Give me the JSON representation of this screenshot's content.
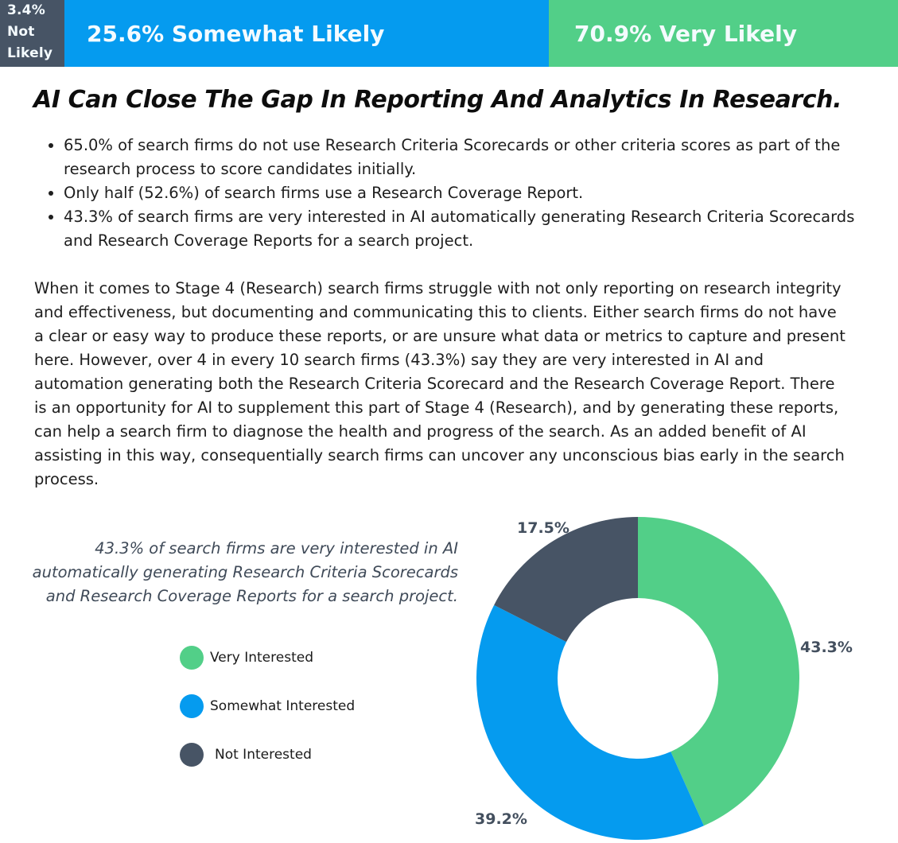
{
  "top_bar": {
    "segments": [
      {
        "label": "3.4%",
        "label_line2": "Not",
        "label_line3": "Likely",
        "value": 3.4,
        "color": "#475465"
      },
      {
        "label": "25.6% Somewhat Likely",
        "value": 25.6,
        "color": "#059bef"
      },
      {
        "label": "70.9% Very Likely",
        "value": 70.9,
        "color": "#52cf88"
      }
    ]
  },
  "heading": "AI Can Close The Gap In Reporting And Analytics In Research.",
  "bullets": [
    "65.0% of search firms do not use Research Criteria Scorecards or other criteria scores as part of the research process to score candidates initially.",
    "Only half (52.6%) of search firms use a Research Coverage Report.",
    "43.3% of search firms are very interested in AI automatically generating Research Criteria Scorecards and Research Coverage Reports for a search project."
  ],
  "paragraph": "When it comes to Stage 4 (Research) search firms struggle with not only reporting on research integrity and effectiveness, but documenting and communicating this to clients. Either search firms do not have a clear or easy way to produce these reports, or are unsure what data or metrics to capture and present here. However, over 4 in every 10 search firms (43.3%) say they are very interested in AI and automation generating both the Research Criteria Scorecard and the Research Coverage Report. There is an opportunity for AI to supplement this part of Stage 4 (Research), and by generating these reports, can help a search firm to diagnose the health and progress of the search. As an added benefit of AI assisting in this way, consequentially search firms can uncover any unconscious bias early in the search process.",
  "callout": "43.3% of search firms are very interested in AI automatically generating Research Criteria Scorecards and Research Coverage Reports for a search project.",
  "legend": [
    {
      "label": "Very Interested",
      "color": "#52cf88"
    },
    {
      "label": "Somewhat Interested",
      "color": "#059bef"
    },
    {
      "label": "Not Interested",
      "color": "#475465"
    }
  ],
  "chart_data": [
    {
      "type": "bar",
      "orientation": "horizontal-stacked",
      "title": "",
      "categories": [
        "Not Likely",
        "Somewhat Likely",
        "Very Likely"
      ],
      "values": [
        3.4,
        25.6,
        70.9
      ],
      "colors": [
        "#475465",
        "#059bef",
        "#52cf88"
      ],
      "labels": [
        "3.4% Not Likely",
        "25.6% Somewhat Likely",
        "70.9% Very Likely"
      ]
    },
    {
      "type": "pie",
      "variant": "donut",
      "title": "",
      "categories": [
        "Very Interested",
        "Somewhat Interested",
        "Not Interested"
      ],
      "values": [
        43.3,
        39.2,
        17.5
      ],
      "labels": [
        "43.3%",
        "39.2%",
        "17.5%"
      ],
      "colors": [
        "#52cf88",
        "#059bef",
        "#475465"
      ],
      "start_angle": "12 o'clock, clockwise",
      "legend_position": "left"
    }
  ]
}
